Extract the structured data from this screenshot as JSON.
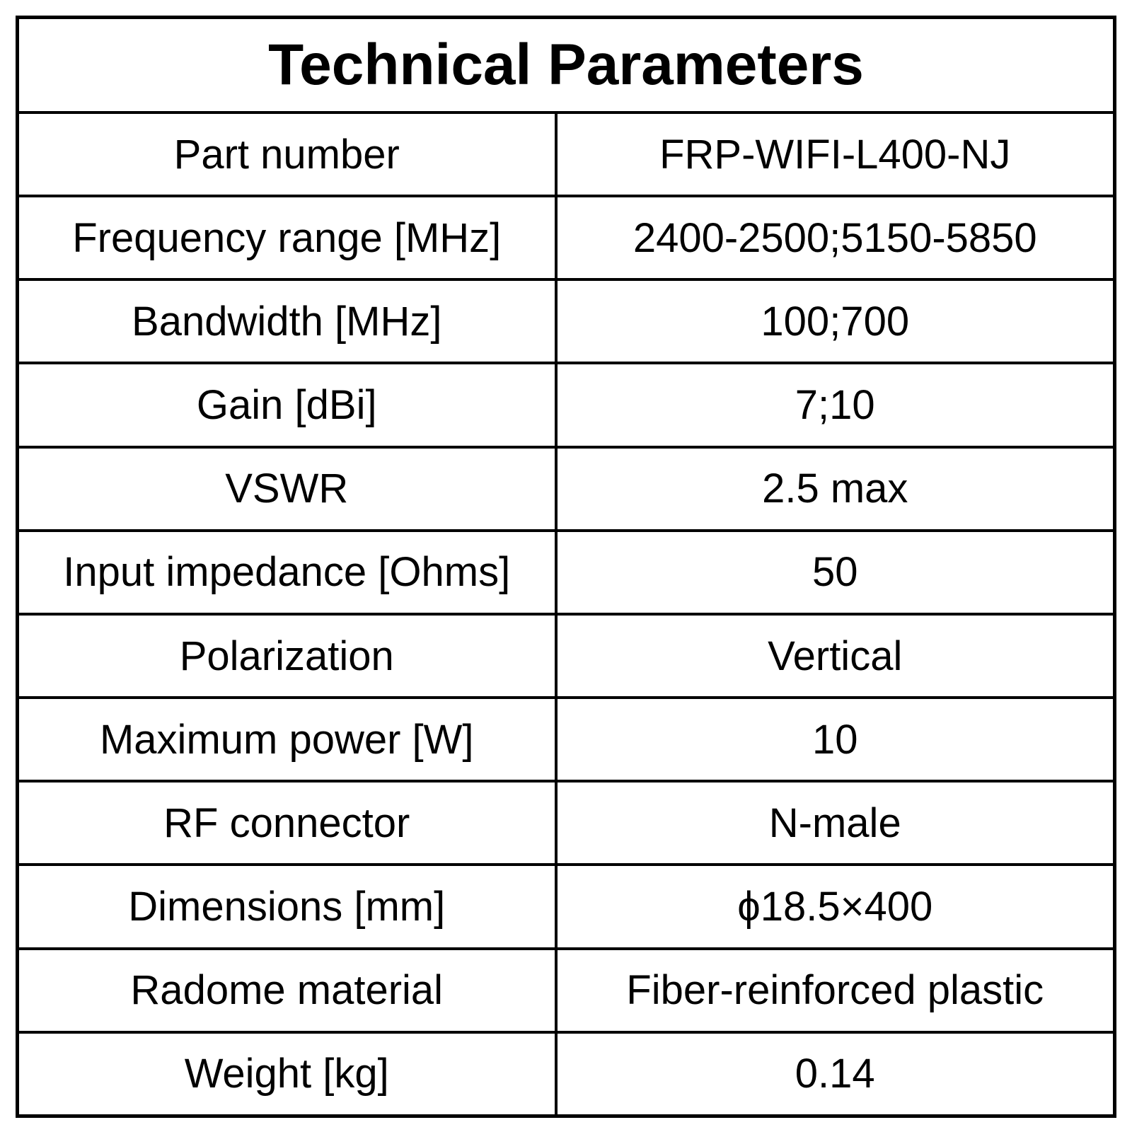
{
  "title": "Technical Parameters",
  "table": {
    "rows": [
      [
        "Part number",
        "FRP-WIFI-L400-NJ"
      ],
      [
        "Frequency range [MHz]",
        "2400-2500;5150-5850"
      ],
      [
        "Bandwidth [MHz]",
        "100;700"
      ],
      [
        "Gain [dBi]",
        "7;10"
      ],
      [
        "VSWR",
        "2.5 max"
      ],
      [
        "Input impedance [Ohms]",
        "50"
      ],
      [
        "Polarization",
        "Vertical"
      ],
      [
        "Maximum power [W]",
        "10"
      ],
      [
        "RF connector",
        "N-male"
      ],
      [
        "Dimensions [mm]",
        "ϕ18.5×400"
      ],
      [
        "Radome material",
        "Fiber-reinforced plastic"
      ],
      [
        "Weight [kg]",
        "0.14"
      ]
    ]
  }
}
